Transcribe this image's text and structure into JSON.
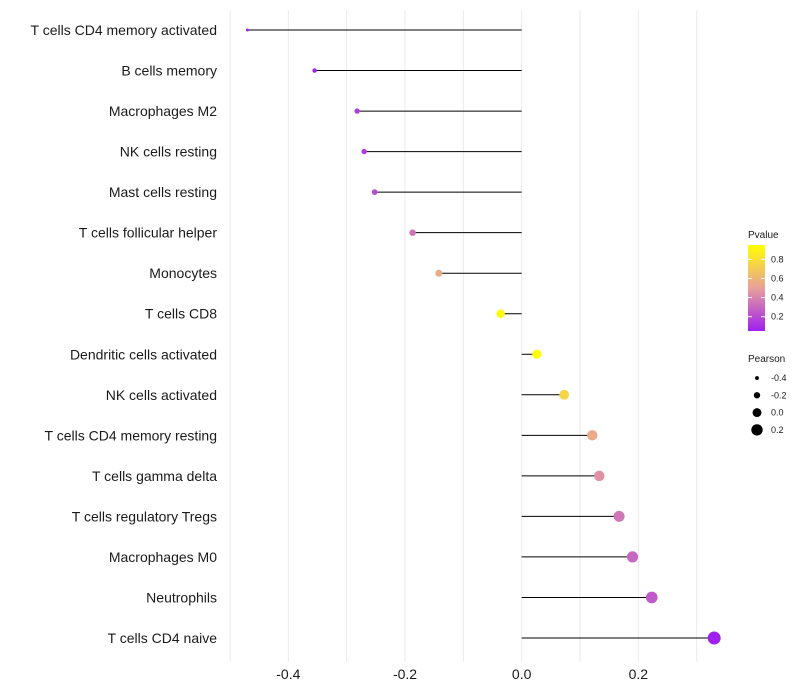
{
  "chart_data": {
    "type": "lollipop",
    "title": "",
    "xlabel": "",
    "ylabel": "",
    "xlim": [
      -0.5,
      0.34
    ],
    "x_ticks": [
      -0.4,
      -0.2,
      0.0,
      0.2
    ],
    "x_tick_labels": [
      "-0.4",
      "-0.2",
      "0.0",
      "0.2"
    ],
    "categories": [
      "T cells CD4 memory activated",
      "B cells memory",
      "Macrophages M2",
      "NK cells resting",
      "Mast cells resting",
      "T cells follicular helper",
      "Monocytes",
      "T cells CD8",
      "Dendritic cells activated",
      "NK cells activated",
      "T cells CD4 memory resting",
      "T cells gamma delta",
      "T cells regulatory  Tregs",
      "Macrophages M0",
      "Neutrophils",
      "T cells CD4 naive"
    ],
    "pearson": [
      -0.47,
      -0.355,
      -0.282,
      -0.27,
      -0.252,
      -0.187,
      -0.142,
      -0.036,
      0.026,
      0.073,
      0.121,
      0.133,
      0.167,
      0.19,
      0.223,
      0.33
    ],
    "pvalue": [
      0.05,
      0.05,
      0.15,
      0.15,
      0.2,
      0.35,
      0.55,
      0.92,
      0.95,
      0.75,
      0.55,
      0.45,
      0.35,
      0.3,
      0.25,
      0.05
    ],
    "legend": {
      "color": {
        "title": "Pvalue",
        "ticks": [
          0.2,
          0.4,
          0.6,
          0.8
        ],
        "tick_labels": [
          "0.2",
          "0.4",
          "0.6",
          "0.8"
        ],
        "range": [
          0.05,
          0.95
        ],
        "low_color": "#a020f0",
        "mid_color": "#e8a09a",
        "high_color": "#ffff00"
      },
      "size": {
        "title": "Pearson",
        "values": [
          -0.4,
          -0.2,
          0.0,
          0.2
        ],
        "labels": [
          "-0.4",
          "-0.2",
          "0.0",
          "0.2"
        ]
      }
    }
  }
}
